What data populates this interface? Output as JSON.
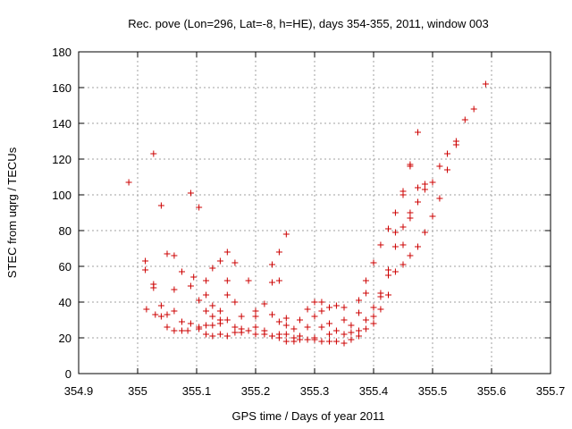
{
  "chart_data": {
    "type": "scatter",
    "title": "Rec. pove (Lon=296, Lat=-8, h=HE), days 354-355, 2011, window 003",
    "xlabel": "GPS time / Days of year 2011",
    "ylabel": "STEC from uqrg / TECUs",
    "xlim": [
      354.9,
      355.7
    ],
    "ylim": [
      0,
      180
    ],
    "xticks": [
      "354.9",
      "355",
      "355.1",
      "355.2",
      "355.3",
      "355.4",
      "355.5",
      "355.6",
      "355.7"
    ],
    "yticks": [
      "0",
      "20",
      "40",
      "60",
      "80",
      "100",
      "120",
      "140",
      "160",
      "180"
    ],
    "grid": true,
    "marker": "+",
    "color": "#cc0000",
    "points": [
      [
        354.985,
        107
      ],
      [
        355.013,
        63
      ],
      [
        355.013,
        58
      ],
      [
        355.015,
        36
      ],
      [
        355.027,
        123
      ],
      [
        355.027,
        50
      ],
      [
        355.027,
        48
      ],
      [
        355.03,
        33
      ],
      [
        355.04,
        94
      ],
      [
        355.04,
        38
      ],
      [
        355.04,
        32
      ],
      [
        355.05,
        67
      ],
      [
        355.05,
        33
      ],
      [
        355.05,
        26
      ],
      [
        355.062,
        66
      ],
      [
        355.062,
        47
      ],
      [
        355.062,
        35
      ],
      [
        355.062,
        24
      ],
      [
        355.075,
        57
      ],
      [
        355.075,
        29
      ],
      [
        355.075,
        24
      ],
      [
        355.085,
        24
      ],
      [
        355.09,
        101
      ],
      [
        355.09,
        49
      ],
      [
        355.09,
        28
      ],
      [
        355.095,
        54
      ],
      [
        355.104,
        93
      ],
      [
        355.104,
        41
      ],
      [
        355.104,
        26
      ],
      [
        355.104,
        25
      ],
      [
        355.116,
        52
      ],
      [
        355.116,
        44
      ],
      [
        355.116,
        35
      ],
      [
        355.116,
        27
      ],
      [
        355.116,
        22
      ],
      [
        355.127,
        59
      ],
      [
        355.127,
        38
      ],
      [
        355.127,
        32
      ],
      [
        355.127,
        27
      ],
      [
        355.127,
        21
      ],
      [
        355.14,
        63
      ],
      [
        355.14,
        35
      ],
      [
        355.14,
        30
      ],
      [
        355.14,
        28
      ],
      [
        355.14,
        22
      ],
      [
        355.152,
        68
      ],
      [
        355.152,
        52
      ],
      [
        355.152,
        44
      ],
      [
        355.152,
        30
      ],
      [
        355.152,
        21
      ],
      [
        355.165,
        62
      ],
      [
        355.165,
        40
      ],
      [
        355.165,
        26
      ],
      [
        355.165,
        23
      ],
      [
        355.176,
        32
      ],
      [
        355.176,
        25
      ],
      [
        355.176,
        23
      ],
      [
        355.188,
        52
      ],
      [
        355.188,
        24
      ],
      [
        355.2,
        35
      ],
      [
        355.2,
        32
      ],
      [
        355.2,
        26
      ],
      [
        355.2,
        22
      ],
      [
        355.215,
        39
      ],
      [
        355.215,
        24
      ],
      [
        355.215,
        22
      ],
      [
        355.228,
        61
      ],
      [
        355.228,
        51
      ],
      [
        355.228,
        33
      ],
      [
        355.228,
        21
      ],
      [
        355.24,
        68
      ],
      [
        355.24,
        52
      ],
      [
        355.24,
        29
      ],
      [
        355.24,
        22
      ],
      [
        355.24,
        20
      ],
      [
        355.252,
        78
      ],
      [
        355.252,
        31
      ],
      [
        355.252,
        27
      ],
      [
        355.252,
        22
      ],
      [
        355.252,
        18
      ],
      [
        355.265,
        25
      ],
      [
        355.265,
        20
      ],
      [
        355.265,
        18
      ],
      [
        355.275,
        30
      ],
      [
        355.275,
        21
      ],
      [
        355.275,
        19
      ],
      [
        355.288,
        36
      ],
      [
        355.288,
        26
      ],
      [
        355.288,
        19
      ],
      [
        355.3,
        40
      ],
      [
        355.3,
        32
      ],
      [
        355.3,
        20
      ],
      [
        355.3,
        19
      ],
      [
        355.312,
        40
      ],
      [
        355.312,
        35
      ],
      [
        355.312,
        26
      ],
      [
        355.312,
        18
      ],
      [
        355.325,
        37
      ],
      [
        355.325,
        28
      ],
      [
        355.325,
        22
      ],
      [
        355.325,
        18
      ],
      [
        355.337,
        38
      ],
      [
        355.337,
        24
      ],
      [
        355.337,
        18
      ],
      [
        355.35,
        37
      ],
      [
        355.35,
        30
      ],
      [
        355.35,
        22
      ],
      [
        355.35,
        17
      ],
      [
        355.362,
        27
      ],
      [
        355.362,
        23
      ],
      [
        355.362,
        19
      ],
      [
        355.375,
        41
      ],
      [
        355.375,
        34
      ],
      [
        355.375,
        24
      ],
      [
        355.375,
        21
      ],
      [
        355.387,
        52
      ],
      [
        355.387,
        45
      ],
      [
        355.387,
        30
      ],
      [
        355.387,
        25
      ],
      [
        355.4,
        62
      ],
      [
        355.4,
        37
      ],
      [
        355.4,
        32
      ],
      [
        355.4,
        28
      ],
      [
        355.412,
        72
      ],
      [
        355.412,
        45
      ],
      [
        355.412,
        43
      ],
      [
        355.412,
        36
      ],
      [
        355.425,
        81
      ],
      [
        355.425,
        58
      ],
      [
        355.425,
        55
      ],
      [
        355.425,
        44
      ],
      [
        355.437,
        90
      ],
      [
        355.437,
        79
      ],
      [
        355.437,
        71
      ],
      [
        355.437,
        57
      ],
      [
        355.45,
        102
      ],
      [
        355.45,
        100
      ],
      [
        355.45,
        82
      ],
      [
        355.45,
        72
      ],
      [
        355.45,
        61
      ],
      [
        355.462,
        117
      ],
      [
        355.462,
        116
      ],
      [
        355.462,
        90
      ],
      [
        355.462,
        87
      ],
      [
        355.462,
        66
      ],
      [
        355.475,
        135
      ],
      [
        355.475,
        104
      ],
      [
        355.475,
        96
      ],
      [
        355.475,
        71
      ],
      [
        355.487,
        106
      ],
      [
        355.487,
        103
      ],
      [
        355.487,
        79
      ],
      [
        355.5,
        107
      ],
      [
        355.5,
        88
      ],
      [
        355.512,
        116
      ],
      [
        355.512,
        98
      ],
      [
        355.525,
        123
      ],
      [
        355.525,
        114
      ],
      [
        355.54,
        130
      ],
      [
        355.54,
        128
      ],
      [
        355.555,
        142
      ],
      [
        355.57,
        148
      ],
      [
        355.59,
        162
      ]
    ]
  }
}
